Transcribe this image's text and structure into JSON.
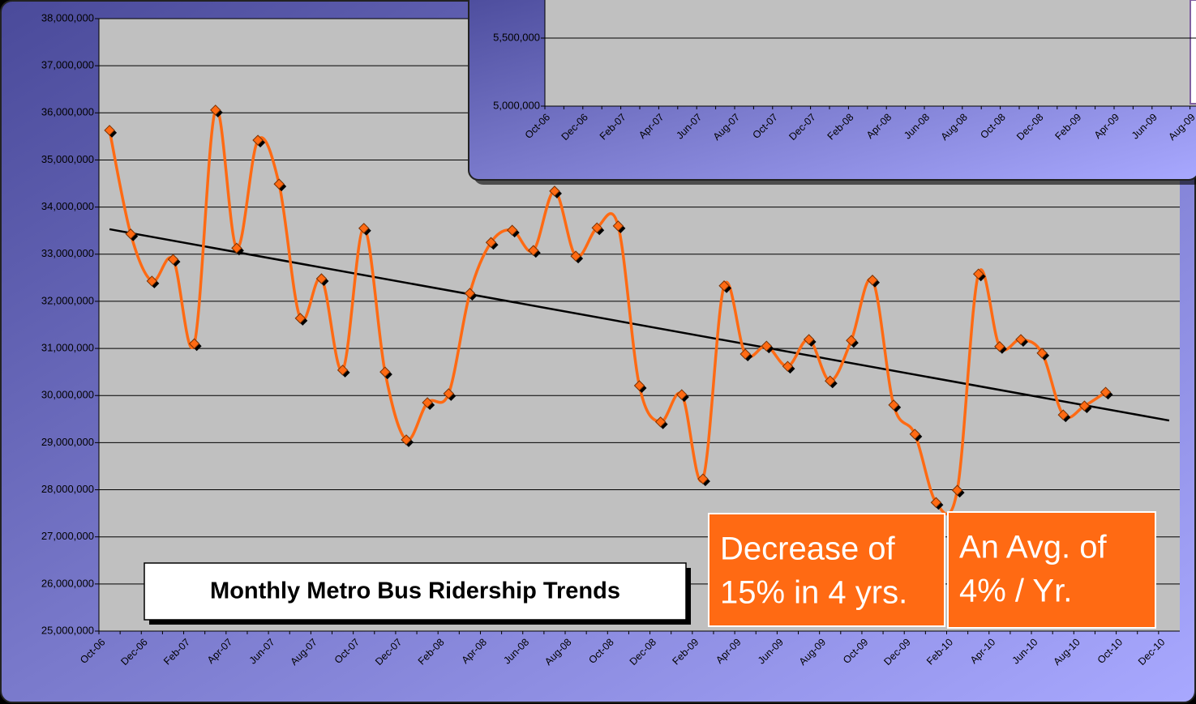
{
  "chart_data": [
    {
      "type": "line",
      "title": "Monthly Metro Bus Ridership Trends",
      "categories": [
        "Oct-06",
        null,
        "Dec-06",
        null,
        "Feb-07",
        null,
        "Apr-07",
        null,
        "Jun-07",
        null,
        "Aug-07",
        null,
        "Oct-07",
        null,
        "Dec-07",
        null,
        "Feb-08",
        null,
        "Apr-08",
        null,
        "Jun-08",
        null,
        "Aug-08",
        null,
        "Oct-08",
        null,
        "Dec-08",
        null,
        "Feb-09",
        null,
        "Apr-09",
        null,
        "Jun-09",
        null,
        "Aug-09",
        null,
        "Oct-09",
        null,
        "Dec-09",
        null,
        "Feb-10",
        null,
        "Apr-10",
        null,
        "Jun-10",
        null,
        "Aug-10",
        null,
        "Oct-10",
        null,
        "Dec-10"
      ],
      "series": [
        {
          "color": "#ff6a13",
          "marker_color": "#ff6a13",
          "values": [
            35630000,
            33430000,
            32430000,
            32890000,
            31100000,
            36060000,
            33130000,
            35420000,
            34490000,
            31640000,
            32480000,
            30540000,
            33550000,
            30500000,
            29060000,
            29850000,
            30040000,
            32170000,
            33250000,
            33510000,
            33080000,
            34340000,
            32960000,
            33560000,
            33600000,
            30210000,
            29440000,
            30020000,
            28230000,
            32330000,
            30880000,
            31050000,
            30620000,
            31190000,
            30310000,
            31170000,
            32450000,
            29800000,
            29180000,
            27730000,
            27990000,
            32580000,
            31040000,
            31190000,
            30900000,
            29590000,
            29780000,
            30070000,
            null,
            null,
            null
          ]
        }
      ],
      "trendline": {
        "color": "#000000",
        "values": [
          33530000,
          29470000
        ]
      },
      "ylim": [
        25000000,
        38000000
      ],
      "yticks": [
        {
          "value": 25000000,
          "label": "25,000,000"
        },
        {
          "value": 26000000,
          "label": "26,000,000"
        },
        {
          "value": 27000000,
          "label": "27,000,000"
        },
        {
          "value": 28000000,
          "label": "28,000,000"
        },
        {
          "value": 29000000,
          "label": "29,000,000"
        },
        {
          "value": 30000000,
          "label": "30,000,000"
        },
        {
          "value": 31000000,
          "label": "31,000,000"
        },
        {
          "value": 32000000,
          "label": "32,000,000"
        },
        {
          "value": 33000000,
          "label": "33,000,000"
        },
        {
          "value": 34000000,
          "label": "34,000,000"
        },
        {
          "value": 35000000,
          "label": "35,000,000"
        },
        {
          "value": 36000000,
          "label": "36,000,000"
        },
        {
          "value": 37000000,
          "label": "37,000,000"
        },
        {
          "value": 38000000,
          "label": "38,000,000"
        }
      ],
      "grid": true,
      "annotations": [
        {
          "lines": [
            "Decrease of",
            "15% in 4 yrs."
          ]
        },
        {
          "lines": [
            "An Avg. of",
            "4% / Yr."
          ]
        }
      ]
    },
    {
      "type": "line",
      "categories": [
        "Oct-06",
        null,
        "Dec-06",
        null,
        "Feb-07",
        null,
        "Apr-07",
        null,
        "Jun-07",
        null,
        "Aug-07",
        null,
        "Oct-07",
        null,
        "Dec-07",
        null,
        "Feb-08",
        null,
        "Apr-08",
        null,
        "Jun-08",
        null,
        "Aug-08",
        null,
        "Oct-08",
        null,
        "Dec-08",
        null,
        "Feb-09",
        null,
        "Apr-09",
        null,
        "Jun-09",
        null,
        "Aug-09"
      ],
      "ylim": [
        5000000,
        6000000
      ],
      "yticks": [
        {
          "value": 5000000,
          "label": "5,000,000"
        },
        {
          "value": 5500000,
          "label": "5,500,000"
        }
      ],
      "grid": true
    }
  ]
}
